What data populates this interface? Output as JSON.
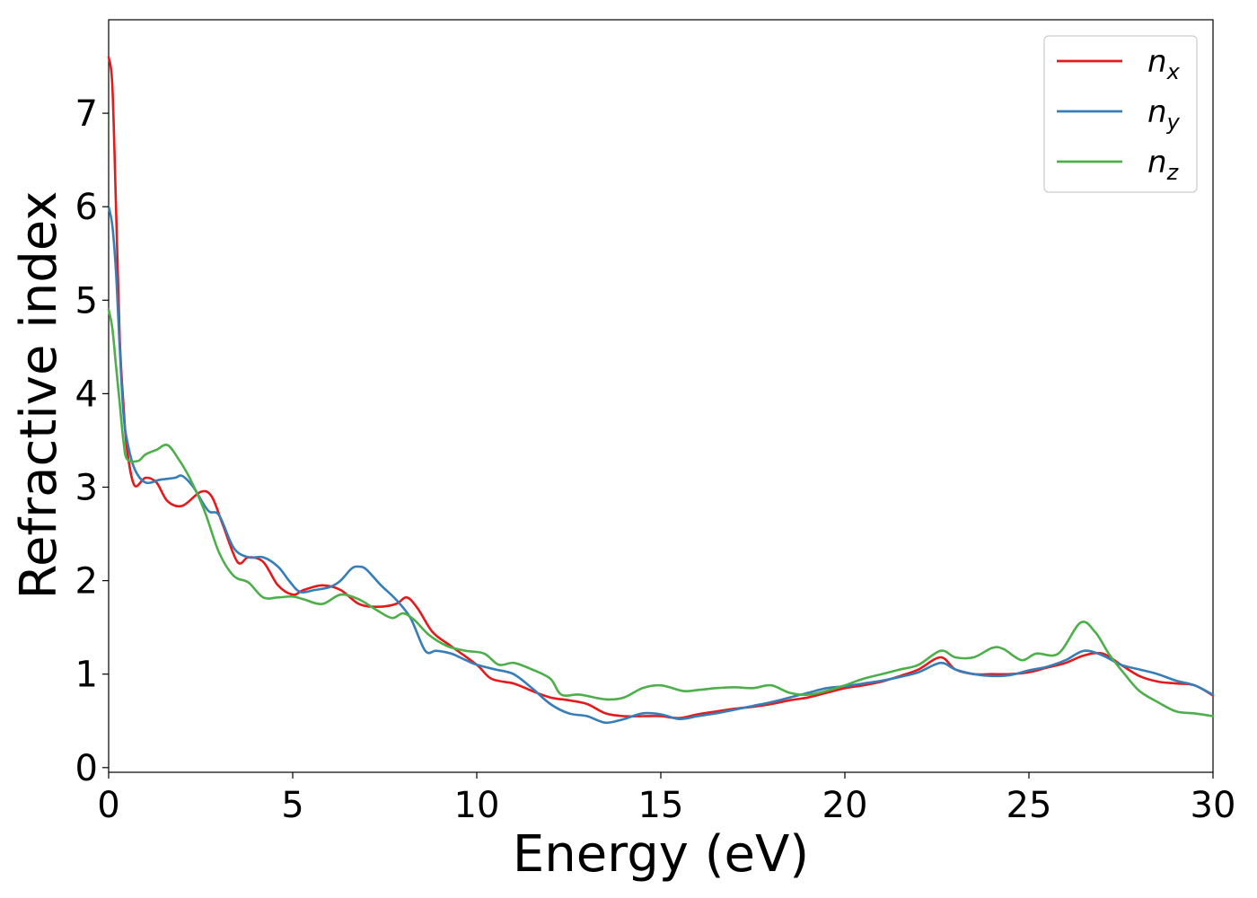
{
  "chart_data": {
    "type": "line",
    "title": "",
    "xlabel": "Energy (eV)",
    "ylabel": "Refractive index",
    "xlim": [
      0,
      30
    ],
    "ylim": [
      -0.05,
      8.0
    ],
    "xticks": [
      0,
      5,
      10,
      15,
      20,
      25,
      30
    ],
    "yticks": [
      0,
      1,
      2,
      3,
      4,
      5,
      6,
      7
    ],
    "grid": false,
    "legend_position": "top-right",
    "series": [
      {
        "name": "n",
        "subscript": "x",
        "color": "#e41a1c",
        "x": [
          0,
          0.1,
          0.2,
          0.3,
          0.4,
          0.5,
          0.7,
          1.0,
          1.3,
          1.6,
          2.0,
          2.5,
          2.8,
          3.1,
          3.5,
          3.8,
          4.2,
          4.6,
          5.0,
          5.3,
          5.8,
          6.3,
          6.8,
          7.3,
          7.8,
          8.1,
          8.4,
          8.8,
          9.3,
          10.0,
          10.4,
          11.0,
          11.5,
          12.0,
          12.5,
          13.0,
          13.5,
          14.0,
          14.5,
          15.0,
          15.5,
          16.0,
          16.5,
          17.0,
          17.5,
          18.0,
          18.5,
          19.0,
          19.5,
          20.0,
          20.5,
          21.0,
          21.5,
          22.0,
          22.6,
          23.0,
          23.5,
          24.0,
          24.5,
          25.0,
          25.5,
          26.0,
          26.5,
          27.0,
          27.5,
          28.0,
          28.5,
          29.0,
          29.5,
          30.0
        ],
        "y": [
          7.6,
          7.3,
          6.0,
          4.6,
          3.9,
          3.4,
          3.02,
          3.1,
          3.05,
          2.85,
          2.8,
          2.95,
          2.9,
          2.6,
          2.2,
          2.25,
          2.2,
          1.95,
          1.85,
          1.9,
          1.95,
          1.9,
          1.75,
          1.72,
          1.75,
          1.82,
          1.7,
          1.45,
          1.3,
          1.1,
          0.95,
          0.9,
          0.82,
          0.75,
          0.72,
          0.68,
          0.58,
          0.55,
          0.55,
          0.55,
          0.53,
          0.57,
          0.6,
          0.63,
          0.65,
          0.68,
          0.72,
          0.75,
          0.8,
          0.85,
          0.88,
          0.92,
          0.98,
          1.05,
          1.18,
          1.05,
          1.0,
          1.0,
          1.0,
          1.02,
          1.07,
          1.12,
          1.2,
          1.22,
          1.1,
          0.98,
          0.92,
          0.9,
          0.88,
          0.77
        ]
      },
      {
        "name": "n",
        "subscript": "y",
        "color": "#377eb8",
        "x": [
          0,
          0.1,
          0.2,
          0.3,
          0.4,
          0.5,
          0.7,
          1.0,
          1.4,
          1.8,
          2.0,
          2.3,
          2.7,
          3.0,
          3.4,
          3.8,
          4.2,
          4.6,
          4.9,
          5.2,
          5.6,
          6.0,
          6.3,
          6.6,
          6.8,
          7.0,
          7.4,
          7.8,
          8.2,
          8.6,
          8.9,
          9.3,
          9.7,
          10.0,
          10.5,
          11.0,
          11.5,
          12.0,
          12.5,
          13.0,
          13.5,
          14.0,
          14.5,
          15.0,
          15.5,
          16.0,
          16.5,
          17.0,
          17.5,
          18.0,
          18.5,
          19.0,
          19.5,
          20.0,
          20.5,
          21.0,
          21.5,
          22.0,
          22.6,
          23.0,
          23.5,
          24.0,
          24.5,
          25.0,
          25.5,
          26.0,
          26.5,
          27.0,
          27.5,
          28.0,
          28.5,
          29.0,
          29.5,
          30.0
        ],
        "y": [
          6.0,
          5.8,
          5.3,
          4.5,
          3.8,
          3.5,
          3.2,
          3.05,
          3.08,
          3.1,
          3.12,
          3.0,
          2.75,
          2.7,
          2.35,
          2.25,
          2.25,
          2.15,
          2.0,
          1.88,
          1.9,
          1.93,
          2.0,
          2.13,
          2.15,
          2.12,
          1.95,
          1.8,
          1.6,
          1.25,
          1.25,
          1.22,
          1.15,
          1.1,
          1.05,
          1.0,
          0.85,
          0.68,
          0.58,
          0.55,
          0.48,
          0.52,
          0.58,
          0.57,
          0.52,
          0.55,
          0.58,
          0.62,
          0.66,
          0.7,
          0.75,
          0.8,
          0.85,
          0.87,
          0.9,
          0.93,
          0.97,
          1.02,
          1.12,
          1.05,
          1.0,
          0.98,
          0.99,
          1.04,
          1.08,
          1.15,
          1.25,
          1.2,
          1.1,
          1.05,
          1.0,
          0.93,
          0.88,
          0.78
        ]
      },
      {
        "name": "n",
        "subscript": "z",
        "color": "#4daf4a",
        "x": [
          0,
          0.1,
          0.2,
          0.3,
          0.4,
          0.5,
          0.8,
          1.0,
          1.3,
          1.6,
          1.9,
          2.2,
          2.6,
          3.0,
          3.4,
          3.8,
          4.2,
          4.6,
          5.0,
          5.3,
          5.8,
          6.3,
          6.8,
          7.3,
          7.7,
          8.0,
          8.3,
          8.7,
          9.2,
          9.7,
          10.2,
          10.6,
          11.0,
          11.5,
          12.0,
          12.3,
          12.8,
          13.5,
          14.0,
          14.5,
          15.0,
          15.6,
          16.0,
          16.5,
          17.0,
          17.5,
          18.0,
          18.5,
          19.0,
          19.5,
          20.0,
          20.5,
          21.0,
          21.5,
          22.0,
          22.6,
          23.0,
          23.5,
          24.0,
          24.3,
          24.8,
          25.2,
          25.8,
          26.4,
          26.8,
          27.2,
          27.6,
          28.0,
          28.5,
          29.0,
          29.5,
          30.0
        ],
        "y": [
          4.9,
          4.7,
          4.3,
          3.9,
          3.5,
          3.3,
          3.28,
          3.35,
          3.4,
          3.45,
          3.3,
          3.1,
          2.75,
          2.3,
          2.05,
          1.98,
          1.82,
          1.82,
          1.83,
          1.8,
          1.75,
          1.85,
          1.8,
          1.68,
          1.6,
          1.65,
          1.58,
          1.42,
          1.3,
          1.25,
          1.22,
          1.1,
          1.12,
          1.05,
          0.95,
          0.78,
          0.78,
          0.73,
          0.75,
          0.85,
          0.88,
          0.82,
          0.83,
          0.85,
          0.86,
          0.85,
          0.88,
          0.8,
          0.78,
          0.82,
          0.88,
          0.95,
          1.0,
          1.05,
          1.1,
          1.25,
          1.18,
          1.18,
          1.28,
          1.27,
          1.15,
          1.22,
          1.22,
          1.55,
          1.45,
          1.2,
          1.0,
          0.82,
          0.7,
          0.6,
          0.58,
          0.55
        ]
      }
    ]
  }
}
